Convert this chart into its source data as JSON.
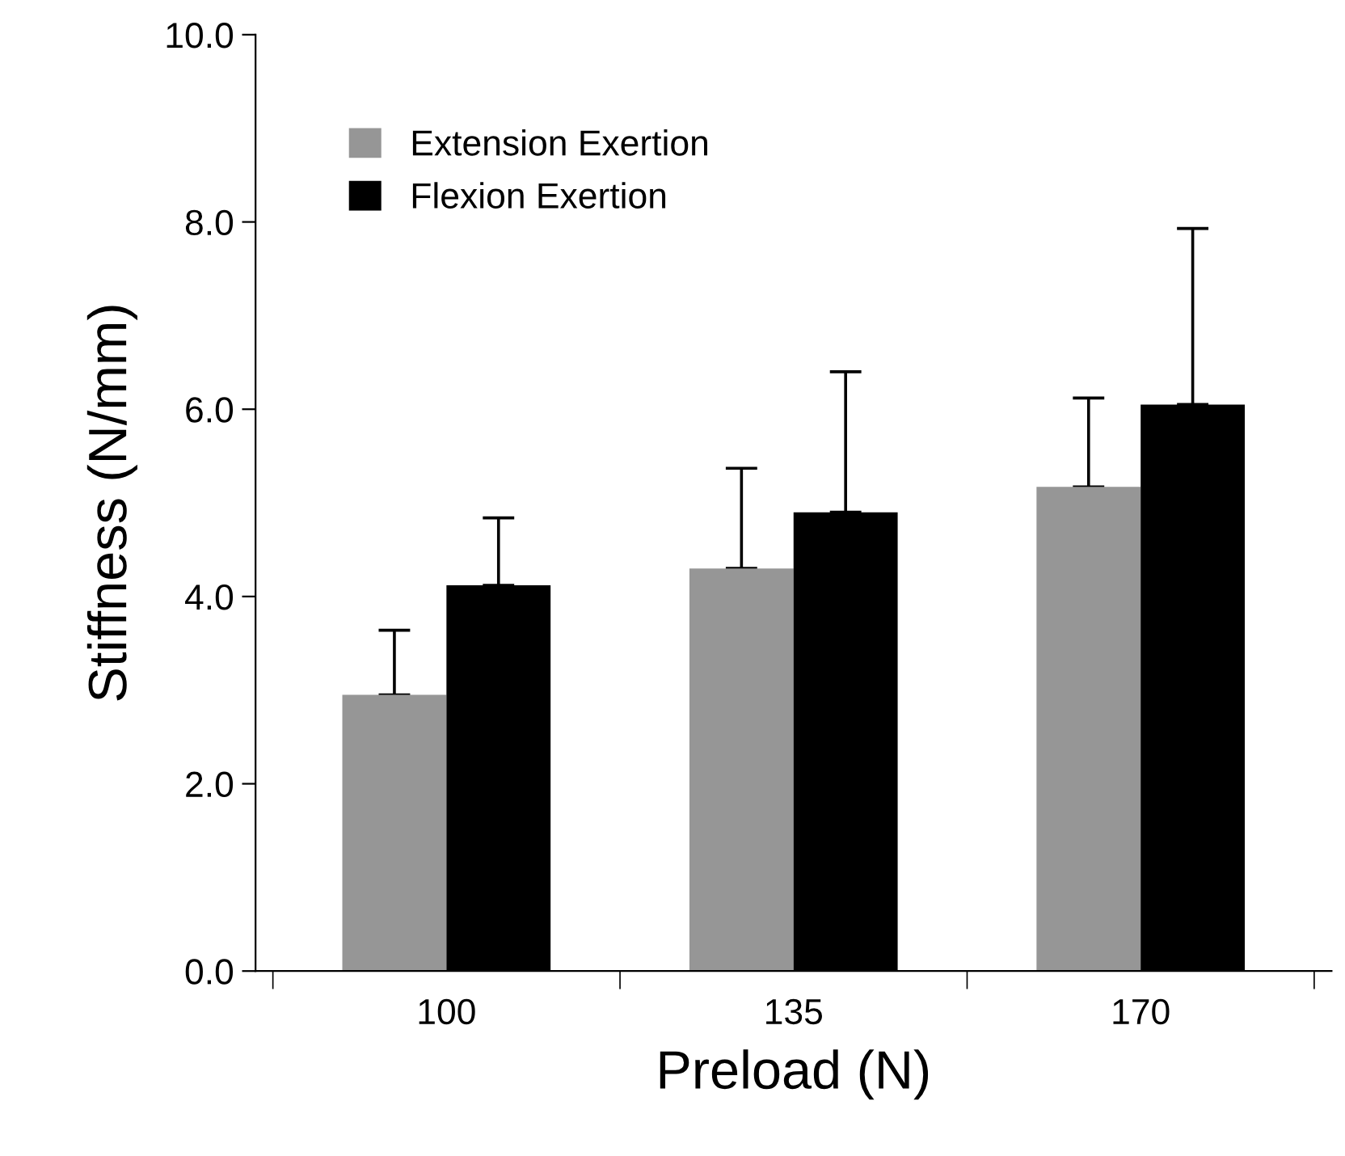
{
  "chart_data": {
    "type": "bar",
    "xlabel": "Preload (N)",
    "ylabel": "Stiffness (N/mm)",
    "categories": [
      "100",
      "135",
      "170"
    ],
    "series": [
      {
        "name": "Extension Exertion",
        "color": "#969696",
        "values": [
          2.95,
          4.3,
          5.17
        ],
        "errors": [
          [
            2.95,
            3.64
          ],
          [
            4.3,
            5.37
          ],
          [
            5.17,
            6.12
          ]
        ]
      },
      {
        "name": "Flexion Exertion",
        "color": "#000000",
        "values": [
          4.12,
          4.9,
          6.05
        ],
        "errors": [
          [
            4.12,
            4.84
          ],
          [
            4.9,
            6.4
          ],
          [
            6.05,
            7.93
          ]
        ]
      }
    ],
    "ylim": [
      0,
      10
    ],
    "yticks": [
      {
        "value": 0,
        "label": "0.0"
      },
      {
        "value": 2,
        "label": "2.0"
      },
      {
        "value": 4,
        "label": "4.0"
      },
      {
        "value": 6,
        "label": "6.0"
      },
      {
        "value": 8,
        "label": "8.0"
      },
      {
        "value": 10,
        "label": "10.0"
      }
    ],
    "grid": false,
    "legend": "top left"
  }
}
